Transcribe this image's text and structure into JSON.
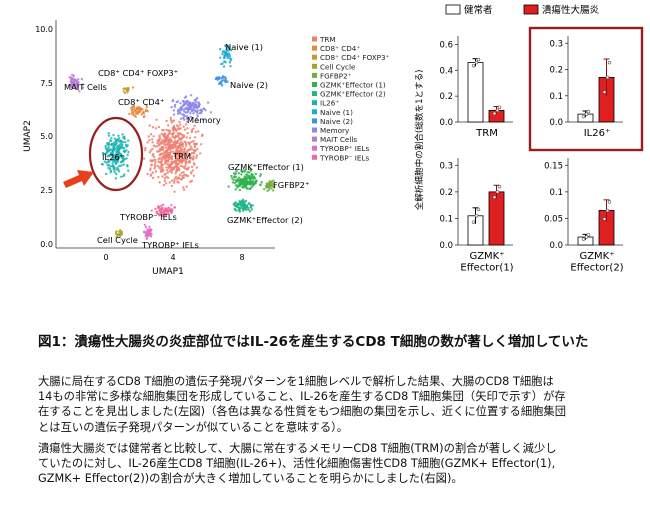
{
  "figure": {
    "umap": {
      "x_axis_title": "UMAP1",
      "y_axis_title": "UMAP2",
      "x_ticks": [
        "0",
        "4",
        "8"
      ],
      "y_ticks": [
        "0.0",
        "2.5",
        "5.0",
        "7.5",
        "10.0"
      ],
      "legend": [
        {
          "label": "TRM",
          "color": "#f07e6e"
        },
        {
          "label": "CD8⁺ CD4⁺",
          "color": "#e5883a"
        },
        {
          "label": "CD8⁺ CD4⁺ FOXP3⁺",
          "color": "#c99a2e"
        },
        {
          "label": "Cell Cycle",
          "color": "#a3a525"
        },
        {
          "label": "FGFBP2⁺",
          "color": "#6cb13f"
        },
        {
          "label": "GZMK⁺Effector (1)",
          "color": "#2fb24f"
        },
        {
          "label": "GZMK⁺Effector (2)",
          "color": "#1fb489"
        },
        {
          "label": "IL26⁺",
          "color": "#1ab3b0"
        },
        {
          "label": "Naive (1)",
          "color": "#1fa9d6"
        },
        {
          "label": "Naive (2)",
          "color": "#3c93ea"
        },
        {
          "label": "Memory",
          "color": "#8c86e8"
        },
        {
          "label": "MAIT Cells",
          "color": "#b57ad6"
        },
        {
          "label": "TYROBP⁺ IELs",
          "color": "#df6fc8"
        },
        {
          "label": "TYROBP⁻ IELs",
          "color": "#ef6aa2"
        }
      ],
      "cluster_labels": [
        {
          "key": "cd8cd4foxp3",
          "text": "CD8⁺ CD4⁺ FOXP3⁺"
        },
        {
          "key": "mait",
          "text": "MAIT Cells"
        },
        {
          "key": "cd8cd4",
          "text": "CD8⁺ CD4⁺"
        },
        {
          "key": "naive1",
          "text": "Naive (1)"
        },
        {
          "key": "naive2",
          "text": "Naive (2)"
        },
        {
          "key": "memory",
          "text": "Memory"
        },
        {
          "key": "il26",
          "text": "IL26⁺"
        },
        {
          "key": "trm",
          "text": "TRM"
        },
        {
          "key": "gzmk1",
          "text": "GZMK⁺Effector (1)"
        },
        {
          "key": "fgfbp2",
          "text": "FGFBP2⁺"
        },
        {
          "key": "gzmk2",
          "text": "GZMK⁺Effector (2)"
        },
        {
          "key": "tyrobp_neg",
          "text": "TYROBP⁻ IELs"
        },
        {
          "key": "cellcycle",
          "text": "Cell Cycle"
        },
        {
          "key": "tyrobp_pos",
          "text": "TYROBP⁺ IELs"
        }
      ],
      "highlight_color": "#9b1c1c",
      "arrow_color": "#e8401c"
    },
    "bar_legend": {
      "healthy": "健常者",
      "uc": "潰瘍性大腸炎",
      "healthy_color": "#ffffff",
      "uc_color": "#e02020"
    },
    "bar_ylabel": "全解析細胞中の割合(総数を1とする)",
    "highlight_panel_color": "#9b1c1c"
  },
  "chart_data": [
    {
      "type": "bar",
      "panel": "TRM",
      "categories": [
        "健常者",
        "潰瘍性大腸炎"
      ],
      "values": [
        0.46,
        0.09
      ],
      "errors": [
        0.03,
        0.03
      ],
      "ylim": [
        0,
        0.65
      ],
      "yticks": [
        0.0,
        0.2,
        0.4,
        0.6
      ],
      "xlabel": [
        "TRM"
      ]
    },
    {
      "type": "bar",
      "panel": "IL26",
      "categories": [
        "健常者",
        "潰瘍性大腸炎"
      ],
      "values": [
        0.03,
        0.17
      ],
      "errors": [
        0.012,
        0.07
      ],
      "ylim": [
        0,
        0.32
      ],
      "yticks": [
        0.0,
        0.1,
        0.2,
        0.3
      ],
      "xlabel": [
        "IL26⁺"
      ]
    },
    {
      "type": "bar",
      "panel": "GZMK1",
      "categories": [
        "健常者",
        "潰瘍性大腸炎"
      ],
      "values": [
        0.11,
        0.2
      ],
      "errors": [
        0.03,
        0.025
      ],
      "ylim": [
        0,
        0.32
      ],
      "yticks": [
        0.0,
        0.1,
        0.2,
        0.3
      ],
      "xlabel": [
        "GZMK⁺",
        "Effector(1)"
      ]
    },
    {
      "type": "bar",
      "panel": "GZMK2",
      "categories": [
        "健常者",
        "潰瘍性大腸炎"
      ],
      "values": [
        0.015,
        0.065
      ],
      "errors": [
        0.005,
        0.02
      ],
      "ylim": [
        0,
        0.16
      ],
      "yticks": [
        0.0,
        0.05,
        0.1,
        0.15
      ],
      "xlabel": [
        "GZMK⁺",
        "Effector(2)"
      ]
    }
  ],
  "caption": "図1：潰瘍性大腸炎の炎症部位ではIL-26を産生するCD8 T細胞の数が著しく増加していた",
  "paragraphs": [
    [
      "大腸に局在するCD8 T細胞の遺伝子発現パターンを1細胞レベルで解析した結果、大腸のCD8 T細胞は",
      "14もの非常に多様な細胞集団を形成していること、IL-26を産生するCD8 T細胞集団（矢印で示す）が存",
      "在することを見出しました(左図)（各色は異なる性質をもつ細胞の集団を示し、近くに位置する細胞集団",
      "とは互いの遺伝子発現パターンが似ていることを意味する）。"
    ],
    [
      "潰瘍性大腸炎では健常者と比較して、大腸に常在するメモリーCD8 T細胞(TRM)の割合が著しく減少し",
      "ていたのに対し、IL-26産生CD8 T細胞(IL-26+)、活性化細胞傷害性CD8 T細胞(GZMK+ Effector(1),",
      "GZMK+ Effector(2))の割合が大きく増加していることを明らかにしました(右図)。"
    ]
  ]
}
